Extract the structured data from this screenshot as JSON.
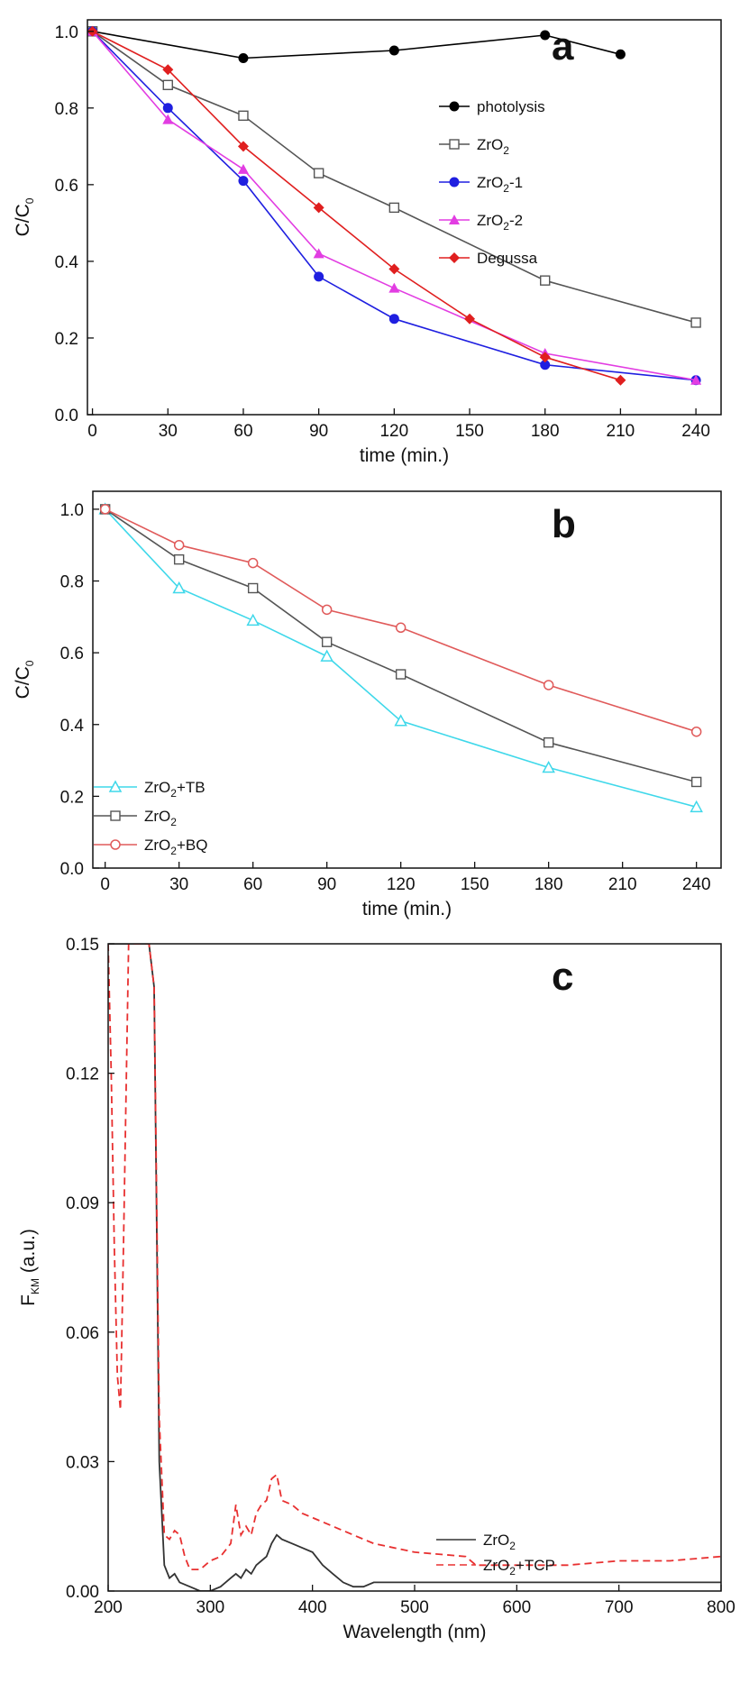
{
  "chart_data": [
    {
      "type": "line",
      "panel": "a",
      "xlabel": "time (min.)",
      "ylabel": "C/C",
      "ylabel_sub": "0",
      "xlim": [
        -2,
        250
      ],
      "ylim": [
        0,
        1.03
      ],
      "xticks": [
        0,
        30,
        60,
        90,
        120,
        150,
        180,
        210,
        240
      ],
      "yticks": [
        "0.0",
        "0.2",
        "0.4",
        "0.6",
        "0.8",
        "1.0"
      ],
      "legend_position": "upper-right",
      "series": [
        {
          "name": "photolysis",
          "name_sub": "",
          "name_suffix": "",
          "color": "#000000",
          "marker": "circle-filled",
          "dash": "",
          "x": [
            0,
            60,
            120,
            180,
            210
          ],
          "y": [
            1.0,
            0.93,
            0.95,
            0.99,
            0.94
          ]
        },
        {
          "name": "ZrO",
          "name_sub": "2",
          "name_suffix": "",
          "color": "#555555",
          "marker": "square-open",
          "dash": "",
          "x": [
            0,
            30,
            60,
            90,
            120,
            180,
            240
          ],
          "y": [
            1.0,
            0.86,
            0.78,
            0.63,
            0.54,
            0.35,
            0.24
          ]
        },
        {
          "name": "ZrO",
          "name_sub": "2",
          "name_suffix": "-1",
          "color": "#1f1fe0",
          "marker": "circle-filled",
          "dash": "",
          "x": [
            0,
            30,
            60,
            90,
            120,
            180,
            240
          ],
          "y": [
            1.0,
            0.8,
            0.61,
            0.36,
            0.25,
            0.13,
            0.09
          ]
        },
        {
          "name": "ZrO",
          "name_sub": "2",
          "name_suffix": "-2",
          "color": "#e23de2",
          "marker": "triangle-filled",
          "dash": "",
          "x": [
            0,
            30,
            60,
            90,
            120,
            180,
            240
          ],
          "y": [
            1.0,
            0.77,
            0.64,
            0.42,
            0.33,
            0.16,
            0.09
          ]
        },
        {
          "name": "Degussa",
          "name_sub": "",
          "name_suffix": "",
          "color": "#e01f1f",
          "marker": "diamond-filled",
          "dash": "",
          "x": [
            0,
            30,
            60,
            90,
            120,
            150,
            180,
            210
          ],
          "y": [
            1.0,
            0.9,
            0.7,
            0.54,
            0.38,
            0.25,
            0.15,
            0.09
          ]
        }
      ]
    },
    {
      "type": "line",
      "panel": "b",
      "xlabel": "time (min.)",
      "ylabel": "C/C",
      "ylabel_sub": "0",
      "xlim": [
        -5,
        250
      ],
      "ylim": [
        0,
        1.05
      ],
      "xticks": [
        0,
        30,
        60,
        90,
        120,
        150,
        180,
        210,
        240
      ],
      "yticks": [
        "0.0",
        "0.2",
        "0.4",
        "0.6",
        "0.8",
        "1.0"
      ],
      "legend_position": "lower-left",
      "series": [
        {
          "name": "ZrO",
          "name_sub": "2",
          "name_suffix": "+TB",
          "color": "#3fd8ea",
          "marker": "triangle-open",
          "dash": "",
          "x": [
            0,
            30,
            60,
            90,
            120,
            180,
            240
          ],
          "y": [
            1.0,
            0.78,
            0.69,
            0.59,
            0.41,
            0.28,
            0.17
          ]
        },
        {
          "name": "ZrO",
          "name_sub": "2",
          "name_suffix": "",
          "color": "#555555",
          "marker": "square-open",
          "dash": "",
          "x": [
            0,
            30,
            60,
            90,
            120,
            180,
            240
          ],
          "y": [
            1.0,
            0.86,
            0.78,
            0.63,
            0.54,
            0.35,
            0.24
          ]
        },
        {
          "name": "ZrO",
          "name_sub": "2",
          "name_suffix": "+BQ",
          "color": "#e05a5a",
          "marker": "circle-open",
          "dash": "",
          "x": [
            0,
            30,
            60,
            90,
            120,
            180,
            240
          ],
          "y": [
            1.0,
            0.9,
            0.85,
            0.72,
            0.67,
            0.51,
            0.38
          ]
        }
      ]
    },
    {
      "type": "line",
      "panel": "c",
      "xlabel": "Wavelength (nm)",
      "ylabel": "F",
      "ylabel_sub": "KM",
      "ylabel_suffix": " (a.u.)",
      "xlim": [
        200,
        800
      ],
      "ylim": [
        0,
        0.15
      ],
      "xticks": [
        200,
        300,
        400,
        500,
        600,
        700,
        800
      ],
      "yticks": [
        "0.00",
        "0.03",
        "0.06",
        "0.09",
        "0.12",
        "0.15"
      ],
      "legend_position": "lower-right",
      "series": [
        {
          "name": "ZrO",
          "name_sub": "2",
          "name_suffix": "",
          "color": "#333333",
          "marker": "none",
          "dash": "",
          "x": [
            200,
            240,
            245,
            250,
            255,
            260,
            265,
            270,
            280,
            290,
            300,
            310,
            320,
            325,
            330,
            335,
            340,
            345,
            350,
            355,
            360,
            365,
            370,
            380,
            390,
            400,
            410,
            420,
            430,
            440,
            450,
            460,
            500,
            550,
            600,
            650,
            700,
            750,
            800
          ],
          "y": [
            0.15,
            0.15,
            0.14,
            0.03,
            0.006,
            0.003,
            0.004,
            0.002,
            0.001,
            0.0,
            0.0,
            0.001,
            0.003,
            0.004,
            0.003,
            0.005,
            0.004,
            0.006,
            0.007,
            0.008,
            0.011,
            0.013,
            0.012,
            0.011,
            0.01,
            0.009,
            0.006,
            0.004,
            0.002,
            0.001,
            0.001,
            0.002,
            0.002,
            0.002,
            0.002,
            0.002,
            0.002,
            0.002,
            0.002
          ]
        },
        {
          "name": "ZrO",
          "name_sub": "2",
          "name_suffix": "+TCP",
          "color": "#e83030",
          "marker": "none",
          "dash": "8,5",
          "x": [
            200,
            203,
            206,
            209,
            212,
            215,
            220,
            230,
            240,
            245,
            250,
            255,
            260,
            265,
            270,
            275,
            280,
            290,
            300,
            310,
            320,
            325,
            330,
            335,
            340,
            345,
            350,
            355,
            360,
            365,
            370,
            380,
            390,
            400,
            420,
            440,
            460,
            500,
            550,
            560,
            600,
            650,
            700,
            750,
            800
          ],
          "y": [
            0.15,
            0.12,
            0.08,
            0.05,
            0.042,
            0.08,
            0.15,
            0.15,
            0.15,
            0.14,
            0.04,
            0.013,
            0.012,
            0.014,
            0.013,
            0.008,
            0.005,
            0.005,
            0.007,
            0.008,
            0.011,
            0.02,
            0.013,
            0.015,
            0.013,
            0.018,
            0.02,
            0.021,
            0.026,
            0.027,
            0.021,
            0.02,
            0.018,
            0.017,
            0.015,
            0.013,
            0.011,
            0.009,
            0.008,
            0.006,
            0.006,
            0.006,
            0.007,
            0.007,
            0.008
          ]
        }
      ]
    }
  ]
}
